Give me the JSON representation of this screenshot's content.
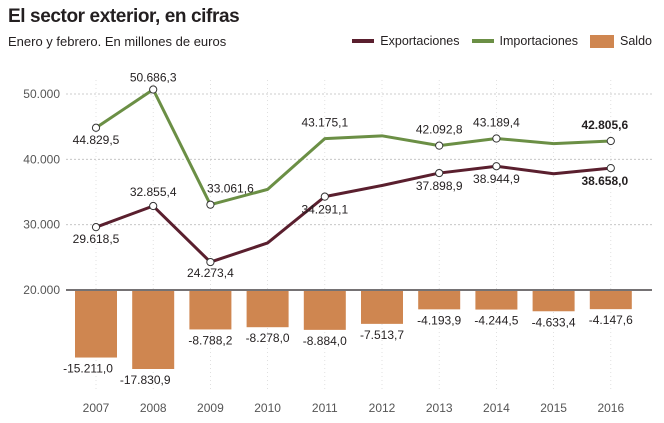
{
  "header": {
    "title": "El sector exterior, en cifras",
    "subtitle": "Enero y febrero. En millones de euros"
  },
  "legend": [
    {
      "label": "Exportaciones",
      "kind": "line",
      "color": "#5a1f2e"
    },
    {
      "label": "Importaciones",
      "kind": "line",
      "color": "#6b8f45"
    },
    {
      "label": "Saldo",
      "kind": "bar",
      "color": "#cf8650"
    }
  ],
  "chart_data": {
    "type": "line+bar",
    "title": "El sector exterior, en cifras",
    "subtitle": "Enero y febrero. En millones de euros",
    "categories": [
      "2007",
      "2008",
      "2009",
      "2010",
      "2011",
      "2012",
      "2013",
      "2014",
      "2015",
      "2016"
    ],
    "y_ticks": [
      "50.000",
      "40.000",
      "30.000",
      "20.000"
    ],
    "line_ylim": [
      20000,
      50000
    ],
    "grid": true,
    "series": [
      {
        "name": "Importaciones",
        "color": "#6b8f45",
        "values": [
          44829.5,
          50686.3,
          33061.6,
          35400,
          43175.1,
          43600,
          42092.8,
          43189.4,
          42400,
          42805.6
        ],
        "labels": [
          "44.829,5",
          "50.686,3",
          "33.061,6",
          "",
          "43.175,1",
          "",
          "42.092,8",
          "43.189,4",
          "",
          "42.805,6"
        ],
        "markers": [
          true,
          true,
          true,
          false,
          false,
          false,
          true,
          true,
          false,
          true
        ]
      },
      {
        "name": "Exportaciones",
        "color": "#5a1f2e",
        "values": [
          29618.5,
          32855.4,
          24273.4,
          27200,
          34291.1,
          36000,
          37898.9,
          38944.9,
          37800,
          38658.0
        ],
        "labels": [
          "29.618,5",
          "32.855,4",
          "24.273,4",
          "",
          "34.291,1",
          "",
          "37.898,9",
          "38.944,9",
          "",
          "38.658,0"
        ],
        "markers": [
          true,
          true,
          true,
          false,
          true,
          false,
          true,
          true,
          false,
          true
        ]
      },
      {
        "name": "Saldo",
        "color": "#cf8650",
        "values": [
          -15211.0,
          -17830.9,
          -8788.2,
          -8278.0,
          -8884.0,
          -7513.7,
          -4193.9,
          -4244.5,
          -4633.4,
          -4147.6
        ],
        "labels": [
          "-15.211,0",
          "-17.830,9",
          "-8.788,2",
          "-8.278,0",
          "-8.884,0",
          "-7.513,7",
          "-4.193,9",
          "-4.244,5",
          "-4.633,4",
          "-4.147,6"
        ]
      }
    ]
  }
}
